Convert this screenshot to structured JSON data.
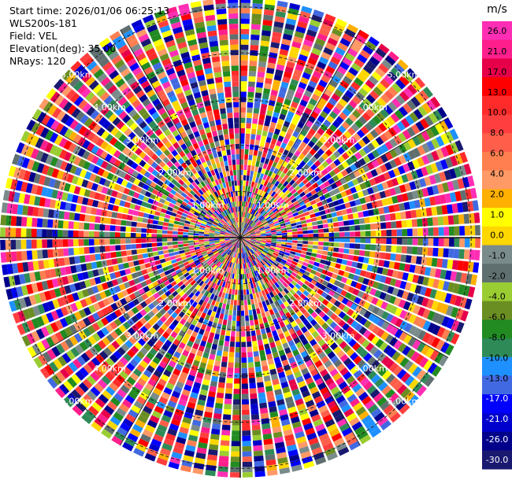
{
  "header": {
    "start_time": "Start time: 2026/01/06 06:25:13",
    "instrument": "WLS200s-181",
    "field": "Field: VEL",
    "elevation": "Elevation(deg): 35.00",
    "nrays": "NRays: 120"
  },
  "chart_data": {
    "type": "ppi",
    "field": "VEL",
    "nrays": 120,
    "ranges_km": [
      1,
      2,
      3,
      4,
      5
    ],
    "range_labels": [
      "1.00km",
      "2.00km",
      "3.00km",
      "4.00km",
      "5.00km"
    ],
    "colorbar": {
      "unit": "m/s",
      "tick_labels": [
        "26.0",
        "21.0",
        "17.0",
        "13.0",
        "10.0",
        "8.0",
        "6.0",
        "4.0",
        "2.0",
        "1.0",
        "0.0",
        "-1.0",
        "-2.0",
        "-4.0",
        "-6.0",
        "-8.0",
        "-10.0",
        "-13.0",
        "-17.0",
        "-21.0",
        "-26.0",
        "-30.0"
      ],
      "colors": [
        "#ff2eb4",
        "#ff1e8c",
        "#e6004a",
        "#ff0000",
        "#ff2a2a",
        "#ff3f3f",
        "#ff5f4a",
        "#ff7f50",
        "#ff9966",
        "#ffb000",
        "#ffff00",
        "#ffd700",
        "#7a8b8b",
        "#5f6f6f",
        "#9acd32",
        "#6b8e23",
        "#228b22",
        "#2e8b57",
        "#1e90ff",
        "#4169e1",
        "#0000ff",
        "#0000cd",
        "#00008b",
        "#191970"
      ]
    }
  }
}
